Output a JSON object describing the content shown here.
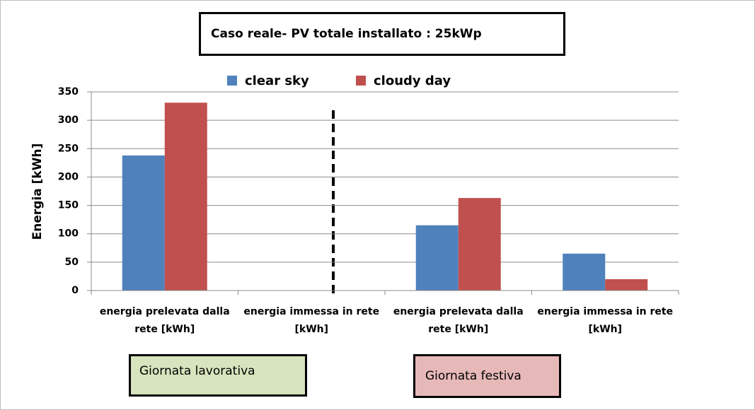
{
  "chart_data": {
    "type": "bar",
    "title": "Caso reale- PV totale installato : 25kWp",
    "y_label": "Energia [kWh]",
    "categories": [
      "energia prelevata dalla rete [kWh]",
      "energia immessa in rete [kWh]",
      "energia prelevata dalla rete [kWh]",
      "energia immessa in rete [kWh]"
    ],
    "series": [
      {
        "name": "clear sky",
        "color": "#4f81bd",
        "values": [
          238,
          0,
          115,
          65
        ]
      },
      {
        "name": "cloudy day",
        "color": "#c0504d",
        "values": [
          331,
          0,
          163,
          20
        ]
      }
    ],
    "ylim": [
      0,
      350
    ],
    "yticks": [
      0,
      50,
      100,
      150,
      200,
      250,
      300,
      350
    ],
    "grid": true,
    "annotations": [
      "Giornata lavorativa",
      "Giornata festiva"
    ]
  }
}
